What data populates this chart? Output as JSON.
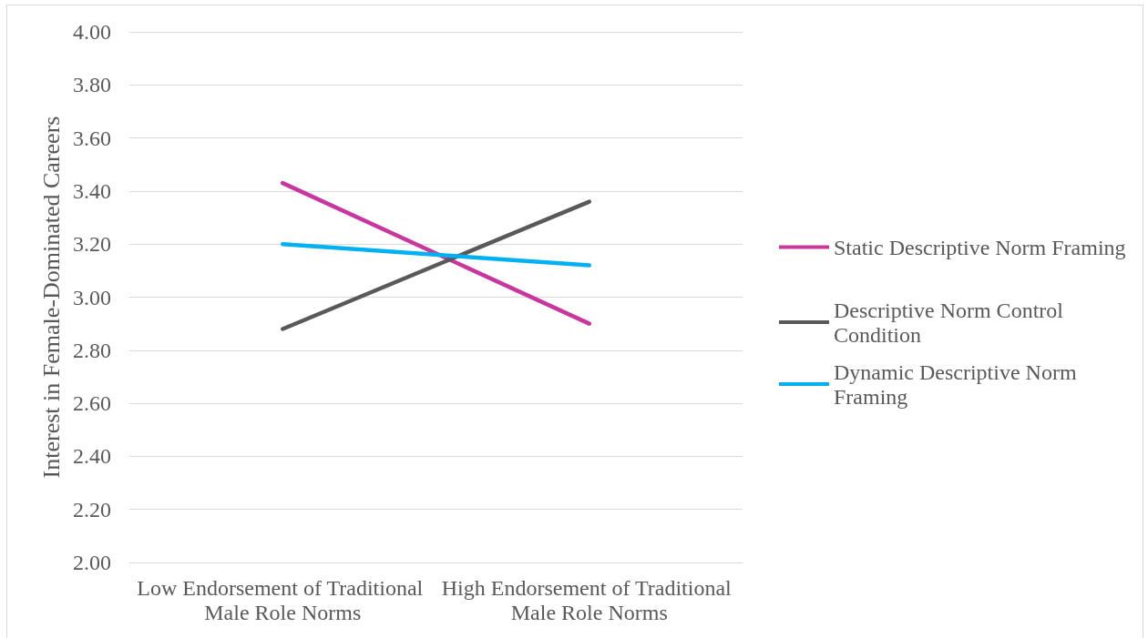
{
  "chart_data": {
    "type": "line",
    "categories": [
      "Low Endorsement of Traditional Male Role Norms",
      "High Endorsement of Traditional Male Role Norms"
    ],
    "ylabel": "Interest in Female-Dominated Careers",
    "ylim": [
      2,
      4
    ],
    "yticks": [
      {
        "value": 2,
        "label": "2.00"
      },
      {
        "value": 2.2,
        "label": "2.20"
      },
      {
        "value": 2.4,
        "label": "2.40"
      },
      {
        "value": 2.6,
        "label": "2.60"
      },
      {
        "value": 2.8,
        "label": "2.80"
      },
      {
        "value": 3,
        "label": "3.00"
      },
      {
        "value": 3.2,
        "label": "3.20"
      },
      {
        "value": 3.4,
        "label": "3.40"
      },
      {
        "value": 3.6,
        "label": "3.60"
      },
      {
        "value": 3.8,
        "label": "3.80"
      },
      {
        "value": 4,
        "label": "4.00"
      }
    ],
    "series": [
      {
        "name": "Static Descriptive Norm Framing",
        "color": "#c9369d",
        "values": [
          3.43,
          2.9
        ]
      },
      {
        "name": "Descriptive Norm Control Condition",
        "color": "#595959",
        "values": [
          2.88,
          3.36
        ]
      },
      {
        "name": "Dynamic Descriptive Norm Framing",
        "color": "#00b0f0",
        "values": [
          3.2,
          3.12
        ]
      }
    ],
    "grid": "y",
    "legend": "right",
    "marker": "none",
    "line_style": "solid"
  }
}
